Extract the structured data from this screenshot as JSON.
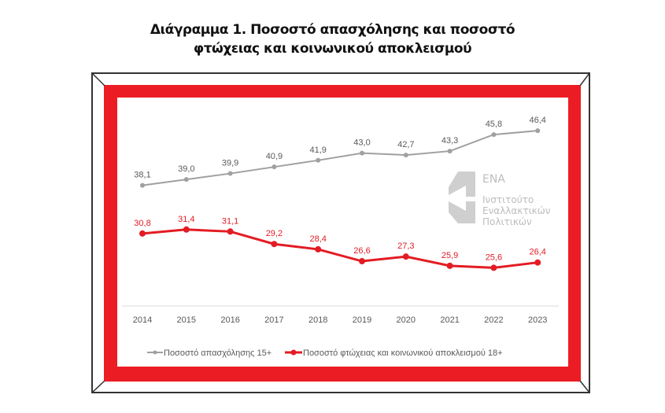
{
  "title_line1": "Διάγραμμα 1. Ποσοστό απασχόλησης και ποσοστό",
  "title_line2": "φτώχειας και κοινωνικού αποκλεισμού",
  "logo": {
    "acronym": "ΕΝΑ",
    "line1": "Ινστιτούτο",
    "line2": "Εναλλακτικών",
    "line3": "Πολιτικών"
  },
  "chart_data": {
    "type": "line",
    "categories": [
      "2014",
      "2015",
      "2016",
      "2017",
      "2018",
      "2019",
      "2020",
      "2021",
      "2022",
      "2023"
    ],
    "series": [
      {
        "name": "Ποσοστό απασχόλησης 15+",
        "color": "#a0a0a0",
        "values": [
          38.1,
          39.0,
          39.9,
          40.9,
          41.9,
          43.0,
          42.7,
          43.3,
          45.8,
          46.4
        ],
        "labels": [
          "38,1",
          "39,0",
          "39,9",
          "40,9",
          "41,9",
          "43,0",
          "42,7",
          "43,3",
          "45,8",
          "46,4"
        ]
      },
      {
        "name": "Ποσοστό φτώχειας και κοινωνικού αποκλεισμού 18+",
        "color": "#e31c23",
        "values": [
          30.8,
          31.4,
          31.1,
          29.2,
          28.4,
          26.6,
          27.3,
          25.9,
          25.6,
          26.4
        ],
        "labels": [
          "30,8",
          "31,4",
          "31,1",
          "29,2",
          "28,4",
          "26,6",
          "27,3",
          "25,9",
          "25,6",
          "26,4"
        ]
      }
    ],
    "grid": false,
    "legend": "bottom",
    "frame_color": "#ec1c24"
  }
}
